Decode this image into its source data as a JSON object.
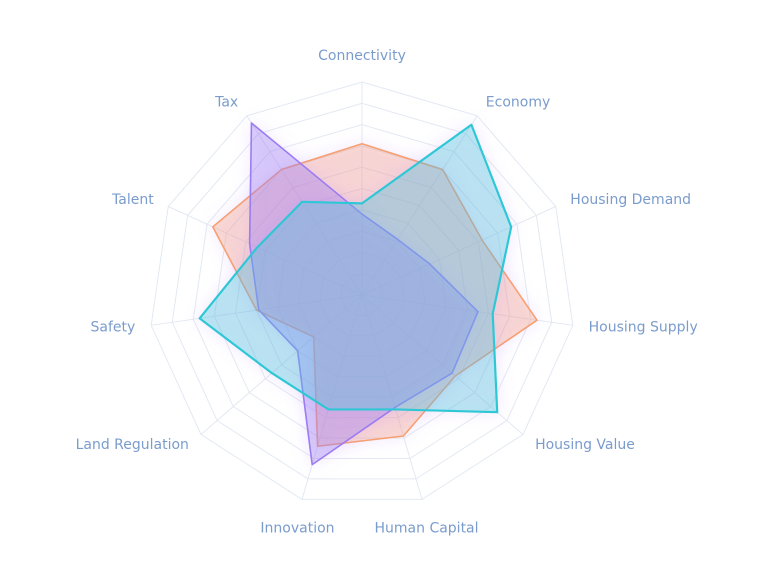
{
  "chart_data": {
    "type": "radar",
    "categories": [
      "Connectivity",
      "Economy",
      "Housing Demand",
      "Housing Supply",
      "Housing Value",
      "Human Capital",
      "Innovation",
      "Land Regulation",
      "Safety",
      "Talent",
      "Tax"
    ],
    "ylim": [
      0,
      100
    ],
    "series": [
      {
        "color": "#f7a072",
        "values": [
          71,
          70,
          62,
          83,
          58,
          69,
          74,
          30,
          50,
          77,
          70
        ]
      },
      {
        "color": "#9b7bf2",
        "values": [
          38,
          31,
          35,
          55,
          56,
          55,
          83,
          40,
          49,
          58,
          96
        ]
      },
      {
        "color": "#2ec7d6",
        "values": [
          43,
          95,
          77,
          62,
          84,
          56,
          56,
          56,
          77,
          54,
          52
        ]
      }
    ]
  }
}
